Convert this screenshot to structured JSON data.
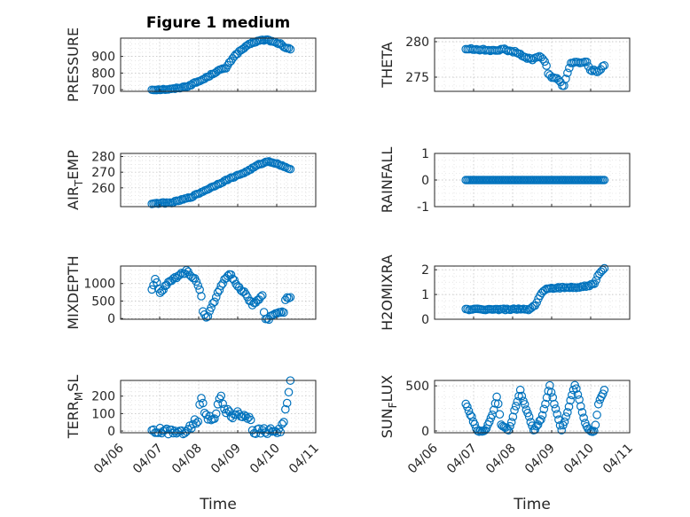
{
  "figure": {
    "title": "Figure 1 medium",
    "date_ticks": [
      "04/06",
      "04/07",
      "04/08",
      "04/09",
      "04/10",
      "04/11"
    ],
    "x_label": "Time",
    "colors": {
      "marker": "#0072bd",
      "axis": "#262626"
    }
  },
  "chart_data": [
    {
      "type": "scatter",
      "label_main": "PRESSURE",
      "label_sub": "",
      "label_tail": "",
      "ylim": [
        690,
        1010
      ],
      "yticks": [
        "700",
        "800",
        "900"
      ],
      "ytick_values": [
        700,
        800,
        900
      ],
      "xlim": [
        0,
        5
      ],
      "x_start": 0.8,
      "x_end": 4.35,
      "keyframes": [
        [
          0.8,
          700
        ],
        [
          1.3,
          703
        ],
        [
          1.7,
          720
        ],
        [
          2.1,
          760
        ],
        [
          2.5,
          815
        ],
        [
          2.7,
          830
        ],
        [
          2.9,
          900
        ],
        [
          3.1,
          940
        ],
        [
          3.35,
          980
        ],
        [
          3.55,
          995
        ],
        [
          3.75,
          1000
        ],
        [
          3.95,
          985
        ],
        [
          4.1,
          975
        ],
        [
          4.2,
          950
        ],
        [
          4.35,
          945
        ]
      ],
      "n": 85,
      "noise": 4
    },
    {
      "type": "scatter",
      "label_main": "THETA",
      "label_sub": "",
      "label_tail": "",
      "ylim": [
        273.0,
        280.5
      ],
      "yticks": [
        "275",
        "280"
      ],
      "ytick_values": [
        275,
        280
      ],
      "xlim": [
        0,
        5
      ],
      "x_start": 0.8,
      "x_end": 4.35,
      "keyframes": [
        [
          0.8,
          279.0
        ],
        [
          1.4,
          278.8
        ],
        [
          1.8,
          278.9
        ],
        [
          2.1,
          278.5
        ],
        [
          2.3,
          277.8
        ],
        [
          2.5,
          277.5
        ],
        [
          2.7,
          278.0
        ],
        [
          2.85,
          277.0
        ],
        [
          2.9,
          275.6
        ],
        [
          3.0,
          275.0
        ],
        [
          3.2,
          274.6
        ],
        [
          3.3,
          273.5
        ],
        [
          3.4,
          275.6
        ],
        [
          3.5,
          277.0
        ],
        [
          3.9,
          277.1
        ],
        [
          4.0,
          276.0
        ],
        [
          4.2,
          275.8
        ],
        [
          4.35,
          276.7
        ]
      ],
      "n": 80,
      "noise": 0.12
    },
    {
      "type": "scatter",
      "label_main": "AIR",
      "label_sub": "T",
      "label_tail": "EMP",
      "ylim": [
        248,
        282
      ],
      "yticks": [
        "260",
        "270",
        "280"
      ],
      "ytick_values": [
        260,
        270,
        280
      ],
      "xlim": [
        0,
        5
      ],
      "x_start": 0.8,
      "x_end": 4.35,
      "keyframes": [
        [
          0.8,
          250
        ],
        [
          1.3,
          250.5
        ],
        [
          1.8,
          254
        ],
        [
          2.3,
          260
        ],
        [
          2.8,
          266
        ],
        [
          3.2,
          270
        ],
        [
          3.55,
          275
        ],
        [
          3.8,
          277
        ],
        [
          4.05,
          275
        ],
        [
          4.35,
          272
        ]
      ],
      "n": 85,
      "noise": 0.35
    },
    {
      "type": "scatter",
      "label_main": "RAINFALL",
      "label_sub": "",
      "label_tail": "",
      "ylim": [
        -1,
        1
      ],
      "yticks": [
        "-1",
        "0",
        "1"
      ],
      "ytick_values": [
        -1,
        0,
        1
      ],
      "xlim": [
        0,
        5
      ],
      "x_start": 0.8,
      "x_end": 4.35,
      "keyframes": [
        [
          0.8,
          0
        ],
        [
          4.35,
          0
        ]
      ],
      "n": 90,
      "noise": 0
    },
    {
      "type": "scatter",
      "label_main": "MIXDEPTH",
      "label_sub": "",
      "label_tail": "",
      "ylim": [
        -20,
        1500
      ],
      "yticks": [
        "0",
        "500",
        "1000"
      ],
      "ytick_values": [
        0,
        500,
        1000
      ],
      "xlim": [
        0,
        5
      ],
      "x_start": 0.8,
      "x_end": 4.35,
      "keyframes": [
        [
          0.8,
          800
        ],
        [
          0.9,
          1150
        ],
        [
          1.0,
          700
        ],
        [
          1.2,
          1000
        ],
        [
          1.5,
          1250
        ],
        [
          1.7,
          1350
        ],
        [
          1.8,
          1250
        ],
        [
          1.95,
          1050
        ],
        [
          2.05,
          800
        ],
        [
          2.12,
          150
        ],
        [
          2.2,
          0
        ],
        [
          2.6,
          1000
        ],
        [
          2.8,
          1300
        ],
        [
          3.0,
          900
        ],
        [
          3.2,
          700
        ],
        [
          3.3,
          500
        ],
        [
          3.4,
          400
        ],
        [
          3.55,
          550
        ],
        [
          3.65,
          700
        ],
        [
          3.68,
          30
        ],
        [
          3.8,
          10
        ],
        [
          4.1,
          200
        ],
        [
          4.18,
          150
        ],
        [
          4.22,
          550
        ],
        [
          4.35,
          600
        ]
      ],
      "n": 85,
      "noise": 40
    },
    {
      "type": "scatter",
      "label_main": "H2OMIXRA",
      "label_sub": "",
      "label_tail": "",
      "ylim": [
        0,
        2.15
      ],
      "yticks": [
        "0",
        "1",
        "2"
      ],
      "ytick_values": [
        0,
        1,
        2
      ],
      "xlim": [
        0,
        5
      ],
      "x_start": 0.8,
      "x_end": 4.35,
      "keyframes": [
        [
          0.8,
          0.4
        ],
        [
          2.45,
          0.4
        ],
        [
          2.6,
          0.6
        ],
        [
          2.72,
          1.0
        ],
        [
          2.85,
          1.25
        ],
        [
          3.7,
          1.3
        ],
        [
          3.95,
          1.35
        ],
        [
          4.1,
          1.45
        ],
        [
          4.2,
          1.8
        ],
        [
          4.35,
          2.05
        ]
      ],
      "n": 85,
      "noise": 0.03
    },
    {
      "type": "scatter",
      "label_main": "TERR",
      "label_sub": "M",
      "label_tail": "SL",
      "ylim": [
        -10,
        290
      ],
      "yticks": [
        "0",
        "100",
        "200"
      ],
      "ytick_values": [
        0,
        100,
        200
      ],
      "xlim": [
        0,
        5
      ],
      "x_start": 0.8,
      "x_end": 4.35,
      "keyframes": [
        [
          0.8,
          0
        ],
        [
          1.7,
          0
        ],
        [
          1.85,
          40
        ],
        [
          2.0,
          75
        ],
        [
          2.05,
          200
        ],
        [
          2.15,
          120
        ],
        [
          2.3,
          60
        ],
        [
          2.45,
          100
        ],
        [
          2.55,
          200
        ],
        [
          2.7,
          120
        ],
        [
          2.85,
          80
        ],
        [
          3.0,
          110
        ],
        [
          3.15,
          80
        ],
        [
          3.3,
          90
        ],
        [
          3.4,
          0
        ],
        [
          4.1,
          0
        ],
        [
          4.2,
          80
        ],
        [
          4.3,
          200
        ],
        [
          4.35,
          280
        ]
      ],
      "n": 85,
      "noise": 18
    },
    {
      "type": "scatter",
      "label_main": "SUN",
      "label_sub": "F",
      "label_tail": "LUX",
      "ylim": [
        -20,
        560
      ],
      "yticks": [
        "0",
        "500"
      ],
      "ytick_values": [
        0,
        500
      ],
      "xlim": [
        0,
        5
      ],
      "x_start": 0.8,
      "x_end": 4.35,
      "keyframes": [
        [
          0.8,
          300
        ],
        [
          1.1,
          0
        ],
        [
          1.3,
          0
        ],
        [
          1.5,
          200
        ],
        [
          1.6,
          400
        ],
        [
          1.7,
          80
        ],
        [
          1.9,
          0
        ],
        [
          2.0,
          150
        ],
        [
          2.2,
          450
        ],
        [
          2.3,
          300
        ],
        [
          2.55,
          0
        ],
        [
          2.75,
          150
        ],
        [
          2.95,
          500
        ],
        [
          3.1,
          250
        ],
        [
          3.25,
          0
        ],
        [
          3.4,
          200
        ],
        [
          3.6,
          520
        ],
        [
          3.85,
          100
        ],
        [
          3.95,
          0
        ],
        [
          4.1,
          0
        ],
        [
          4.2,
          300
        ],
        [
          4.35,
          450
        ]
      ],
      "n": 95,
      "noise": 10
    }
  ]
}
